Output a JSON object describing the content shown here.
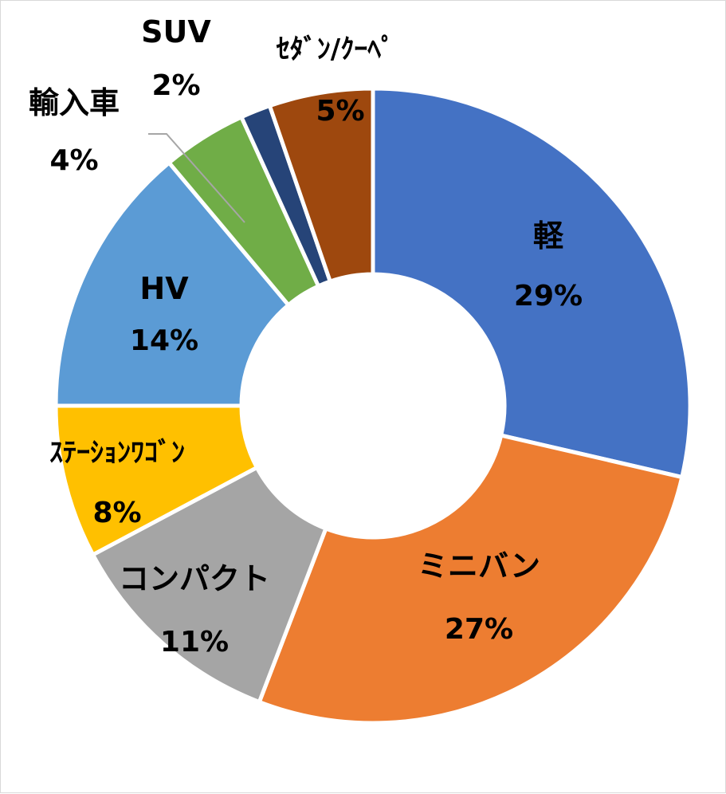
{
  "chart_data": {
    "type": "pie",
    "title": "",
    "categories": [
      "軽",
      "ミニバン",
      "コンパクト",
      "ｽﾃｰｼｮﾝﾜｺﾞﾝ",
      "HV",
      "輸入車",
      "SUV",
      "ｾﾀﾞﾝ/ｸｰﾍﾟ"
    ],
    "values": [
      29,
      27,
      11,
      8,
      14,
      4,
      2,
      5
    ],
    "value_labels": [
      "29%",
      "27%",
      "11%",
      "8%",
      "14%",
      "4%",
      "2%",
      "5%"
    ],
    "colors": [
      "#4472c4",
      "#ed7d31",
      "#a5a5a5",
      "#ffc000",
      "#5b9bd5",
      "#70ad47",
      "#264478",
      "#9e480e"
    ],
    "donut": true,
    "legend": "none",
    "data_labels": "category and percent"
  }
}
